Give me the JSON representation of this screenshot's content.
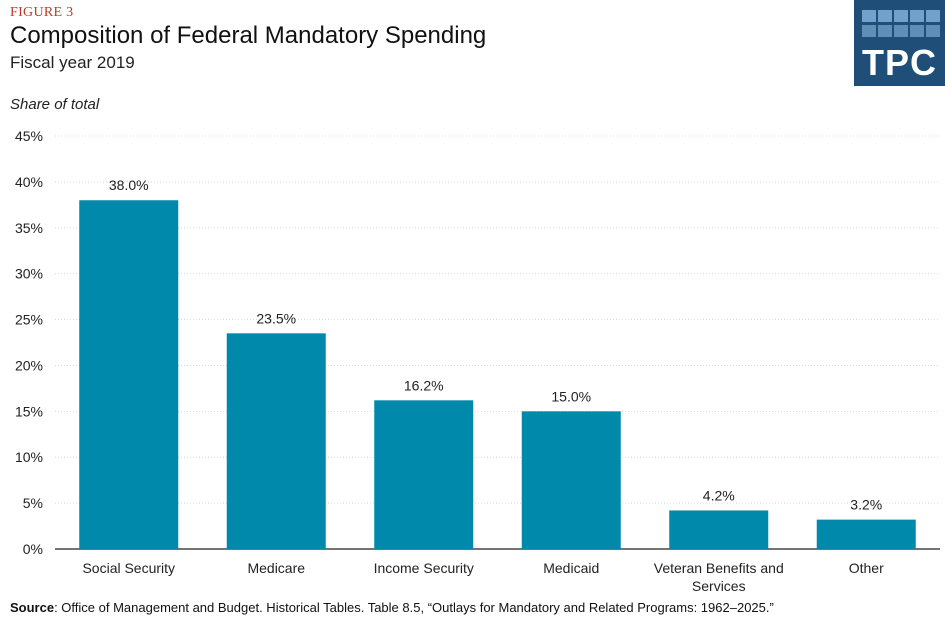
{
  "figure_label": "FIGURE 3",
  "title": "Composition of Federal Mandatory Spending",
  "subtitle": "Fiscal year 2019",
  "y_axis_caption": "Share of total",
  "logo": {
    "text": "TPC",
    "icon": "tpc-logo"
  },
  "source": {
    "label": "Source",
    "text": ": Office of Management and Budget. Historical Tables. Table 8.5, “Outlays for Mandatory and Related Programs: 1962–2025.”"
  },
  "colors": {
    "bar": "#0089aa",
    "grid": "#d9d9d9",
    "axis": "#222222",
    "logo_bg": "#1f4e79",
    "logo_tiles": "#7fb2d9"
  },
  "chart_data": {
    "type": "bar",
    "title": "Composition of Federal Mandatory Spending",
    "subtitle": "Fiscal year 2019",
    "xlabel": "",
    "ylabel": "Share of total",
    "categories": [
      "Social Security",
      "Medicare",
      "Income Security",
      "Medicaid",
      "Veteran Benefits and Services",
      "Other"
    ],
    "values": [
      38.0,
      23.5,
      16.2,
      15.0,
      4.2,
      3.2
    ],
    "data_labels": [
      "38.0%",
      "23.5%",
      "16.2%",
      "15.0%",
      "4.2%",
      "3.2%"
    ],
    "ylim": [
      0,
      45
    ],
    "yticks": [
      0,
      5,
      10,
      15,
      20,
      25,
      30,
      35,
      40,
      45
    ],
    "ytick_labels": [
      "0%",
      "5%",
      "10%",
      "15%",
      "20%",
      "25%",
      "30%",
      "35%",
      "40%",
      "45%"
    ],
    "grid": true,
    "legend": "none"
  }
}
